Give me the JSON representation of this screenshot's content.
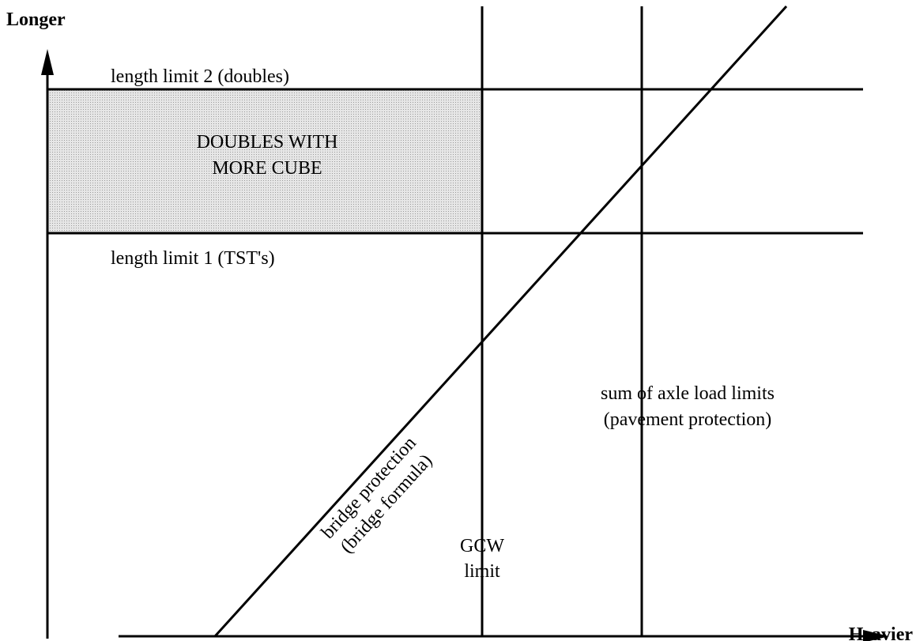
{
  "axes": {
    "y_label": "Longer",
    "x_label": "Heavier"
  },
  "length_limits": [
    {
      "label": "length limit 2 (doubles)"
    },
    {
      "label": "length limit 1 (TST's)"
    }
  ],
  "region": {
    "lines": [
      "DOUBLES WITH",
      "MORE CUBE"
    ]
  },
  "gcw": {
    "lines": [
      "GCW",
      "limit"
    ]
  },
  "axle": {
    "lines": [
      "sum of axle load limits",
      "(pavement protection)"
    ]
  },
  "bridge": {
    "lines": [
      "bridge protection",
      "(bridge formula)"
    ]
  }
}
